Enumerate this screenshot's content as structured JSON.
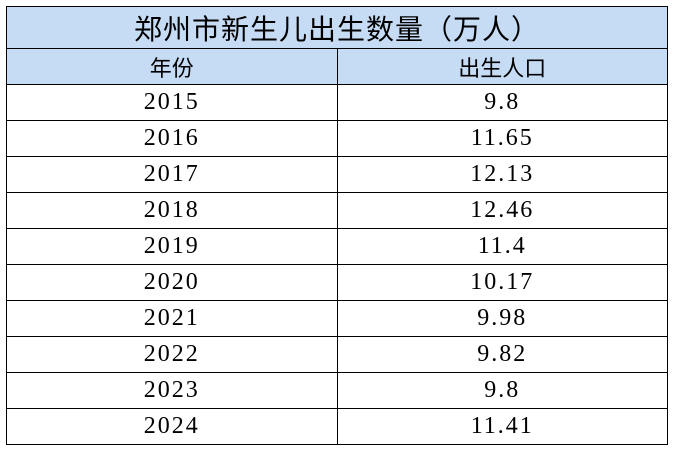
{
  "table": {
    "title": "郑州市新生儿出生数量（万人）",
    "header": [
      "年份",
      "出生人口"
    ],
    "rows": [
      [
        2015,
        9.8
      ],
      [
        2016,
        11.65
      ],
      [
        2017,
        12.13
      ],
      [
        2018,
        12.46
      ],
      [
        2019,
        11.4
      ],
      [
        2020,
        10.17
      ],
      [
        2021,
        9.98
      ],
      [
        2022,
        9.82
      ],
      [
        2023,
        9.8
      ],
      [
        2024,
        11.41
      ]
    ]
  }
}
